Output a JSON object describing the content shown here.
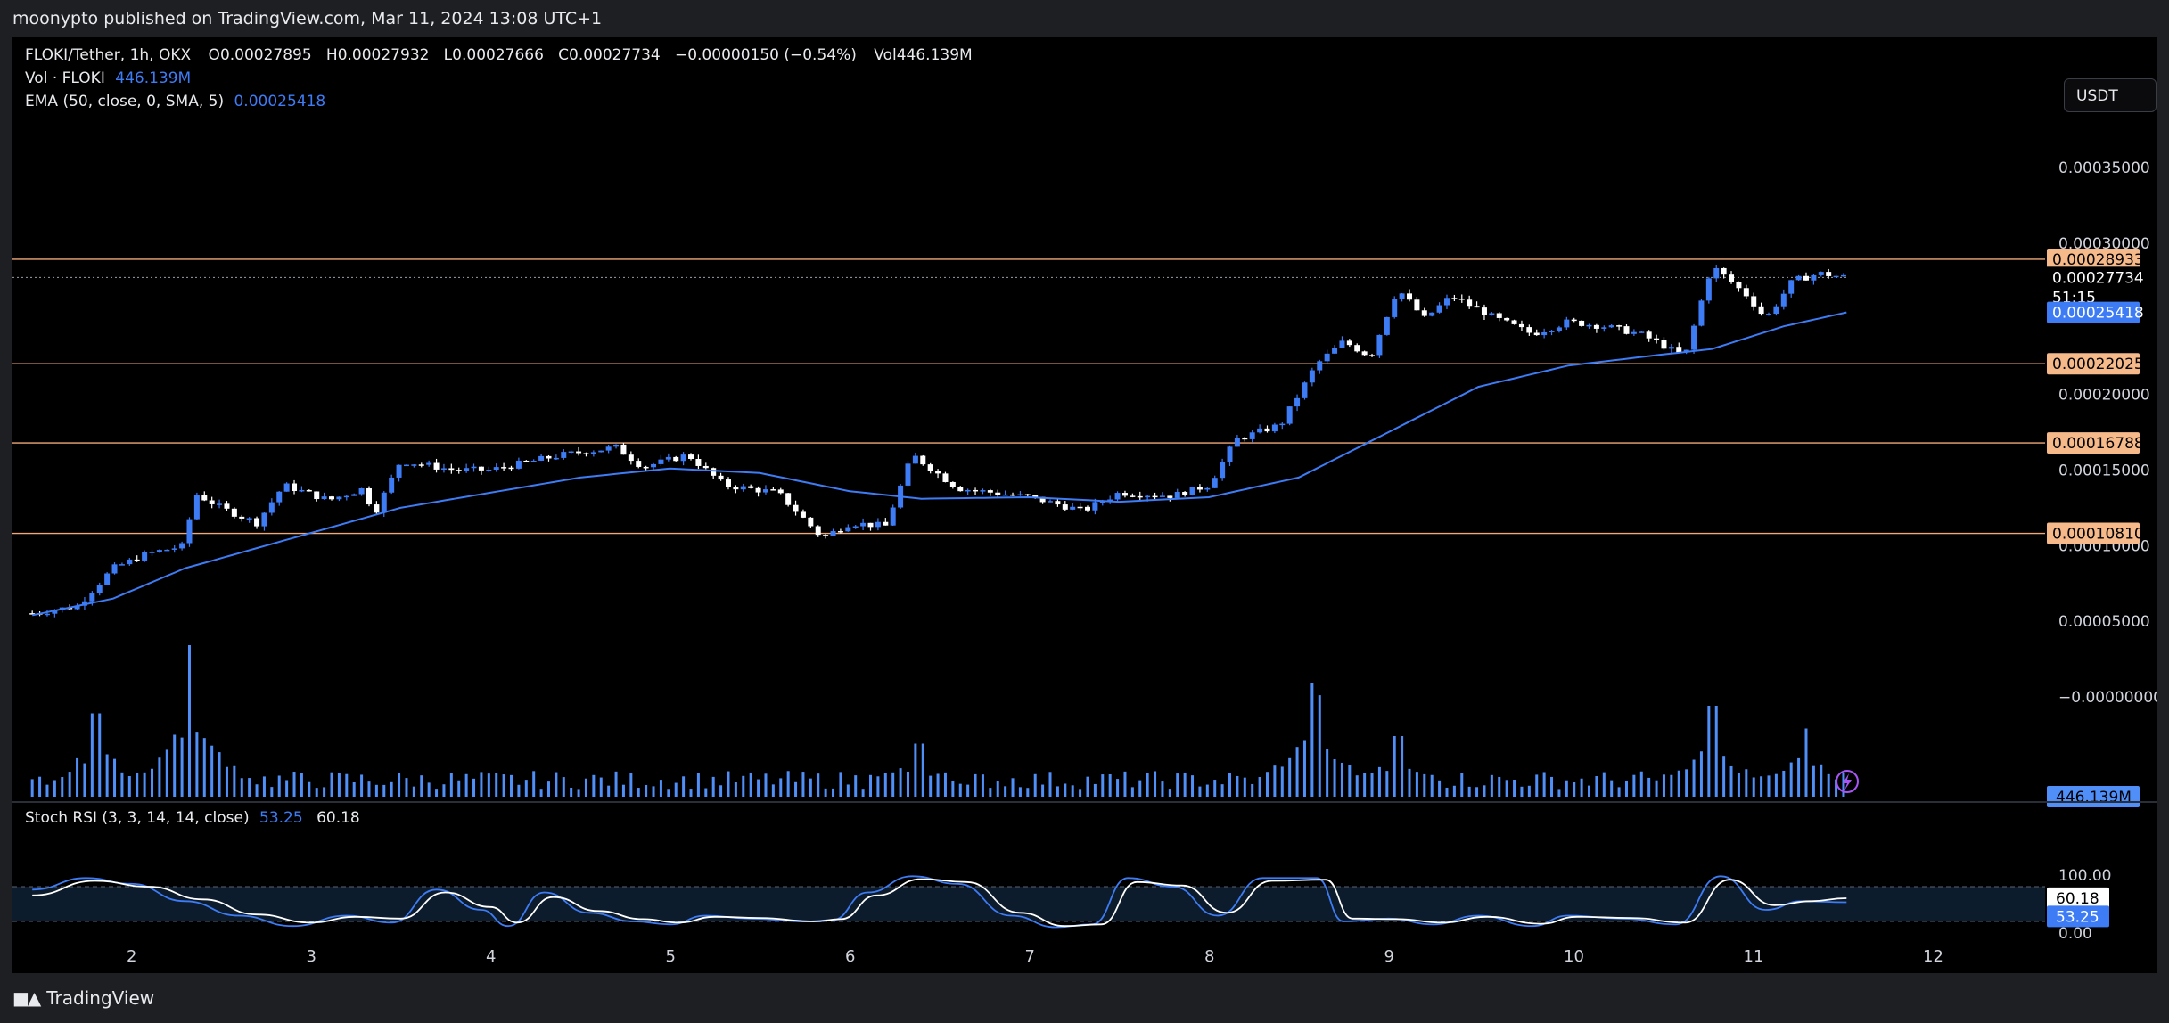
{
  "header": {
    "publisher_text": "moonypto published on TradingView.com, Mar 11, 2024 13:08 UTC+1"
  },
  "legend": {
    "symbol": "FLOKI/Tether, 1h, OKX",
    "open_label": "O",
    "open": "0.00027895",
    "high_label": "H",
    "high": "0.00027932",
    "low_label": "L",
    "low": "0.00027666",
    "close_label": "C",
    "close": "0.00027734",
    "change": "−0.00000150 (−0.54%)",
    "vol_label": "Vol",
    "vol": "446.139M",
    "volume_title": "Vol · FLOKI",
    "volume_value": "446.139M",
    "ema_title": "EMA (50, close, 0, SMA, 5)",
    "ema_value": "0.00025418",
    "stoch_title": "Stoch RSI (3, 3, 14, 14, close)",
    "stoch_k": "53.25",
    "stoch_d": "60.18"
  },
  "toolbar": {
    "currency_label": "USDT"
  },
  "footer": {
    "brand": "TradingView",
    "logo_icon": "tradingview-logo-icon",
    "flash_icon": "lightning-icon"
  },
  "colors": {
    "background": "#000000",
    "candle_up": "#3d7cf5",
    "candle_down": "#ffffff",
    "ema": "#3d7cf5",
    "level_line": "#f0a878",
    "level_label_bg": "#f5b98a",
    "volume": "#4f8ff7",
    "stoch_k": "#3d7cf5",
    "stoch_d": "#ffffff"
  },
  "chart_data": {
    "type": "candlestick",
    "x_ticks": [
      "2",
      "3",
      "4",
      "5",
      "6",
      "7",
      "8",
      "9",
      "10",
      "11",
      "12"
    ],
    "price_axis": {
      "ticks": [
        "0.00035000",
        "0.00030000",
        "0.00020000",
        "0.00015000",
        "0.00010000",
        "0.00005000",
        "−0.00000000"
      ],
      "tick_values": [
        0.00035,
        0.0003,
        0.0002,
        0.00015,
        0.0001,
        5e-05,
        0.0
      ],
      "ylim": [
        0.0,
        0.00036
      ]
    },
    "horizontal_levels": [
      {
        "value": 0.00028933,
        "label": "0.00028933"
      },
      {
        "value": 0.00022025,
        "label": "0.00022025"
      },
      {
        "value": 0.00016788,
        "label": "0.00016788"
      },
      {
        "value": 0.0001081,
        "label": "0.00010810"
      }
    ],
    "last_price": {
      "value": 0.00027734,
      "label": "0.00027734",
      "countdown": "51:15"
    },
    "ema_label": {
      "value": 0.00025418,
      "label": "0.00025418"
    },
    "volume_last_label": "446.139M",
    "stoch_axis": {
      "ticks": [
        "100.00",
        "0.00"
      ],
      "tick_values": [
        100,
        0
      ],
      "band": [
        80,
        20
      ],
      "mid": 50
    },
    "stoch_labels": {
      "d": "60.18",
      "k": "53.25"
    },
    "price_path": [
      [
        "1.45",
        5.53e-05
      ],
      [
        "1.70",
        6e-05
      ],
      [
        "1.90",
        8.5e-05
      ],
      [
        "2.10",
        9.5e-05
      ],
      [
        "2.30",
        0.0001
      ],
      [
        "2.35",
        0.000135
      ],
      [
        "2.50",
        0.000125
      ],
      [
        "2.70",
        0.000115
      ],
      [
        "2.85",
        0.00014
      ],
      [
        "3.10",
        0.00013
      ],
      [
        "3.30",
        0.000138
      ],
      [
        "3.35",
        0.00012
      ],
      [
        "3.50",
        0.000156
      ],
      [
        "3.80",
        0.00015
      ],
      [
        "4.00",
        0.00015
      ],
      [
        "4.20",
        0.000155
      ],
      [
        "4.40",
        0.00016
      ],
      [
        "4.70",
        0.000165
      ],
      [
        "4.85",
        0.000152
      ],
      [
        "5.10",
        0.00016
      ],
      [
        "5.30",
        0.00014
      ],
      [
        "5.60",
        0.000135
      ],
      [
        "5.85",
        0.000105
      ],
      [
        "6.00",
        0.000115
      ],
      [
        "6.20",
        0.000113
      ],
      [
        "6.35",
        0.00016
      ],
      [
        "6.60",
        0.000138
      ],
      [
        "6.80",
        0.000135
      ],
      [
        "7.00",
        0.000132
      ],
      [
        "7.30",
        0.000123
      ],
      [
        "7.50",
        0.000135
      ],
      [
        "7.80",
        0.000133
      ],
      [
        "8.00",
        0.00014
      ],
      [
        "8.15",
        0.00017
      ],
      [
        "8.40",
        0.00018
      ],
      [
        "8.60",
        0.00022
      ],
      [
        "8.75",
        0.000235
      ],
      [
        "8.90",
        0.000225
      ],
      [
        "9.05",
        0.00027
      ],
      [
        "9.20",
        0.00025
      ],
      [
        "9.35",
        0.000265
      ],
      [
        "9.60",
        0.00025
      ],
      [
        "9.80",
        0.00024
      ],
      [
        "10.00",
        0.000248
      ],
      [
        "10.20",
        0.000245
      ],
      [
        "10.40",
        0.00024
      ],
      [
        "10.65",
        0.000225
      ],
      [
        "10.80",
        0.000285
      ],
      [
        "11.00",
        0.000265
      ],
      [
        "11.10",
        0.00025
      ],
      [
        "11.25",
        0.000275
      ],
      [
        "11.40",
        0.00028
      ],
      [
        "11.55",
        0.0002773
      ]
    ],
    "ema_path": [
      [
        "1.45",
        5.4e-05
      ],
      [
        "1.90",
        6.5e-05
      ],
      [
        "2.30",
        8.5e-05
      ],
      [
        "2.90",
        0.000105
      ],
      [
        "3.50",
        0.000125
      ],
      [
        "4.00",
        0.000135
      ],
      [
        "4.50",
        0.000145
      ],
      [
        "5.00",
        0.000151
      ],
      [
        "5.50",
        0.000148
      ],
      [
        "6.00",
        0.000136
      ],
      [
        "6.40",
        0.000131
      ],
      [
        "7.00",
        0.000132
      ],
      [
        "7.50",
        0.000129
      ],
      [
        "8.00",
        0.000132
      ],
      [
        "8.50",
        0.000145
      ],
      [
        "9.00",
        0.000175
      ],
      [
        "9.50",
        0.000205
      ],
      [
        "10.00",
        0.000219
      ],
      [
        "10.50",
        0.000226
      ],
      [
        "10.80",
        0.00023
      ],
      [
        "11.20",
        0.000245
      ],
      [
        "11.55",
        0.0002542
      ]
    ],
    "volume_spikes": [
      {
        "x": "2.33",
        "v": 1.0
      },
      {
        "x": "1.80",
        "v": 0.55
      },
      {
        "x": "8.57",
        "v": 0.75
      },
      {
        "x": "10.80",
        "v": 0.6
      },
      {
        "x": "11.33",
        "v": 0.45
      },
      {
        "x": "8.62",
        "v": 0.67
      },
      {
        "x": "9.05",
        "v": 0.4
      },
      {
        "x": "6.38",
        "v": 0.35
      }
    ],
    "stoch_k_path": [
      [
        "1.45",
        75
      ],
      [
        "1.75",
        95
      ],
      [
        "2.0",
        85
      ],
      [
        "2.3",
        55
      ],
      [
        "2.6",
        30
      ],
      [
        "2.9",
        12
      ],
      [
        "3.2",
        30
      ],
      [
        "3.45",
        18
      ],
      [
        "3.7",
        75
      ],
      [
        "3.95",
        40
      ],
      [
        "4.1",
        12
      ],
      [
        "4.3",
        70
      ],
      [
        "4.55",
        35
      ],
      [
        "4.8",
        20
      ],
      [
        "5.0",
        15
      ],
      [
        "5.2",
        30
      ],
      [
        "5.45",
        25
      ],
      [
        "5.75",
        20
      ],
      [
        "5.9",
        22
      ],
      [
        "6.1",
        70
      ],
      [
        "6.35",
        98
      ],
      [
        "6.6",
        85
      ],
      [
        "6.9",
        30
      ],
      [
        "7.15",
        10
      ],
      [
        "7.35",
        15
      ],
      [
        "7.55",
        95
      ],
      [
        "7.8",
        80
      ],
      [
        "8.05",
        30
      ],
      [
        "8.3",
        95
      ],
      [
        "8.6",
        95
      ],
      [
        "8.75",
        20
      ],
      [
        "9.0",
        25
      ],
      [
        "9.25",
        15
      ],
      [
        "9.5",
        30
      ],
      [
        "9.8",
        12
      ],
      [
        "10.0",
        30
      ],
      [
        "10.3",
        25
      ],
      [
        "10.6",
        15
      ],
      [
        "10.85",
        98
      ],
      [
        "11.1",
        40
      ],
      [
        "11.3",
        55
      ],
      [
        "11.55",
        53
      ]
    ],
    "stoch_d_path": [
      [
        "1.45",
        65
      ],
      [
        "1.8",
        90
      ],
      [
        "2.1",
        80
      ],
      [
        "2.4",
        58
      ],
      [
        "2.7",
        32
      ],
      [
        "3.0",
        18
      ],
      [
        "3.25",
        28
      ],
      [
        "3.5",
        25
      ],
      [
        "3.75",
        70
      ],
      [
        "4.0",
        45
      ],
      [
        "4.15",
        18
      ],
      [
        "4.35",
        62
      ],
      [
        "4.6",
        38
      ],
      [
        "4.85",
        24
      ],
      [
        "5.05",
        18
      ],
      [
        "5.25",
        28
      ],
      [
        "5.5",
        26
      ],
      [
        "5.8",
        20
      ],
      [
        "5.95",
        24
      ],
      [
        "6.15",
        65
      ],
      [
        "6.4",
        93
      ],
      [
        "6.65",
        88
      ],
      [
        "6.95",
        35
      ],
      [
        "7.2",
        12
      ],
      [
        "7.4",
        15
      ],
      [
        "7.6",
        88
      ],
      [
        "7.85",
        82
      ],
      [
        "8.1",
        35
      ],
      [
        "8.35",
        90
      ],
      [
        "8.65",
        92
      ],
      [
        "8.8",
        25
      ],
      [
        "9.05",
        24
      ],
      [
        "9.3",
        18
      ],
      [
        "9.55",
        28
      ],
      [
        "9.85",
        16
      ],
      [
        "10.05",
        28
      ],
      [
        "10.35",
        26
      ],
      [
        "10.65",
        18
      ],
      [
        "10.9",
        92
      ],
      [
        "11.15",
        48
      ],
      [
        "11.35",
        55
      ],
      [
        "11.55",
        60
      ]
    ]
  }
}
